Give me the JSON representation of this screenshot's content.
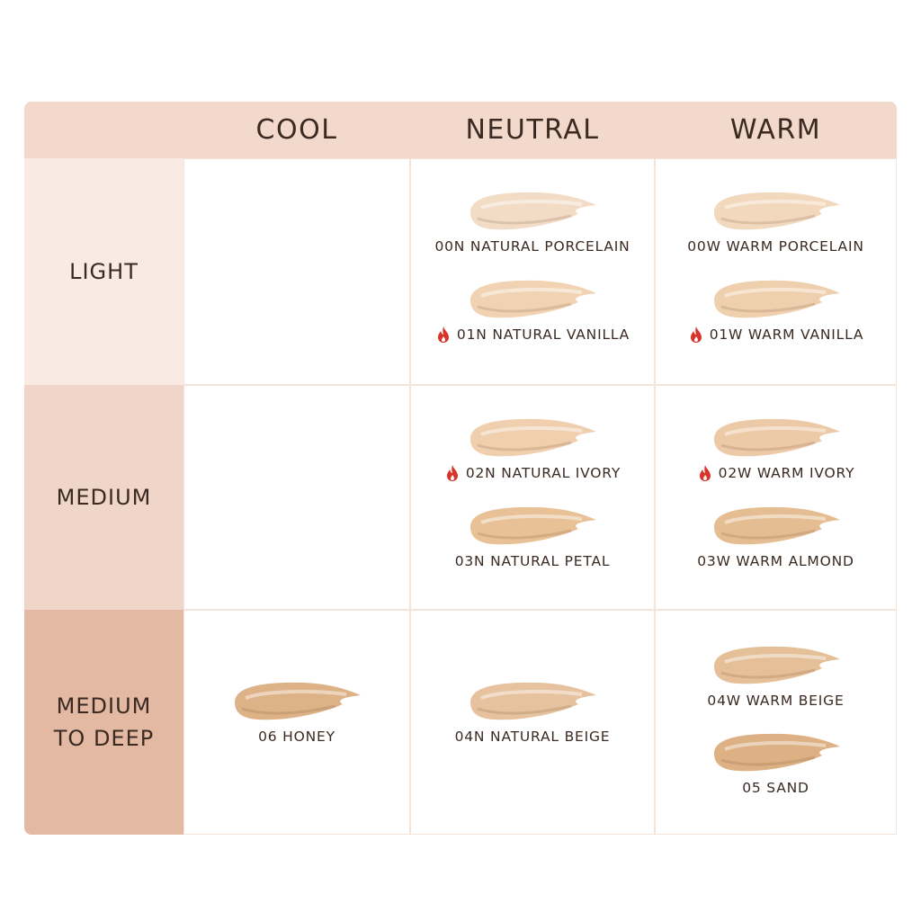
{
  "table": {
    "columns": [
      "COOL",
      "NEUTRAL",
      "WARM"
    ],
    "rows": [
      {
        "label": "LIGHT",
        "background": "#f9ebe3",
        "cells": [
          [],
          [
            {
              "name": "00N NATURAL PORCELAIN",
              "color": "#f3dcc6",
              "hot": false
            },
            {
              "name": "01N NATURAL VANILLA",
              "color": "#f1d3b4",
              "hot": true
            }
          ],
          [
            {
              "name": "00W WARM PORCELAIN",
              "color": "#f2d8bd",
              "hot": false
            },
            {
              "name": "01W WARM VANILLA",
              "color": "#efd0ae",
              "hot": true
            }
          ]
        ]
      },
      {
        "label": "MEDIUM",
        "background": "#efd6c8",
        "cells": [
          [],
          [
            {
              "name": "02N NATURAL IVORY",
              "color": "#efcfae",
              "hot": true
            },
            {
              "name": "03N NATURAL PETAL",
              "color": "#e8c197",
              "hot": false
            }
          ],
          [
            {
              "name": "02W WARM IVORY",
              "color": "#edcaa7",
              "hot": true
            },
            {
              "name": "03W WARM ALMOND",
              "color": "#e5bd93",
              "hot": false
            }
          ]
        ]
      },
      {
        "label": "MEDIUM\nTO DEEP",
        "background": "#e3b9a3",
        "cells": [
          [
            {
              "name": "06 HONEY",
              "color": "#deb287",
              "hot": false
            }
          ],
          [
            {
              "name": "04N NATURAL BEIGE",
              "color": "#e6c29e",
              "hot": false
            }
          ],
          [
            {
              "name": "04W WARM BEIGE",
              "color": "#e4bf97",
              "hot": false
            },
            {
              "name": "05 SAND",
              "color": "#ddb184",
              "hot": false
            }
          ]
        ]
      }
    ]
  }
}
